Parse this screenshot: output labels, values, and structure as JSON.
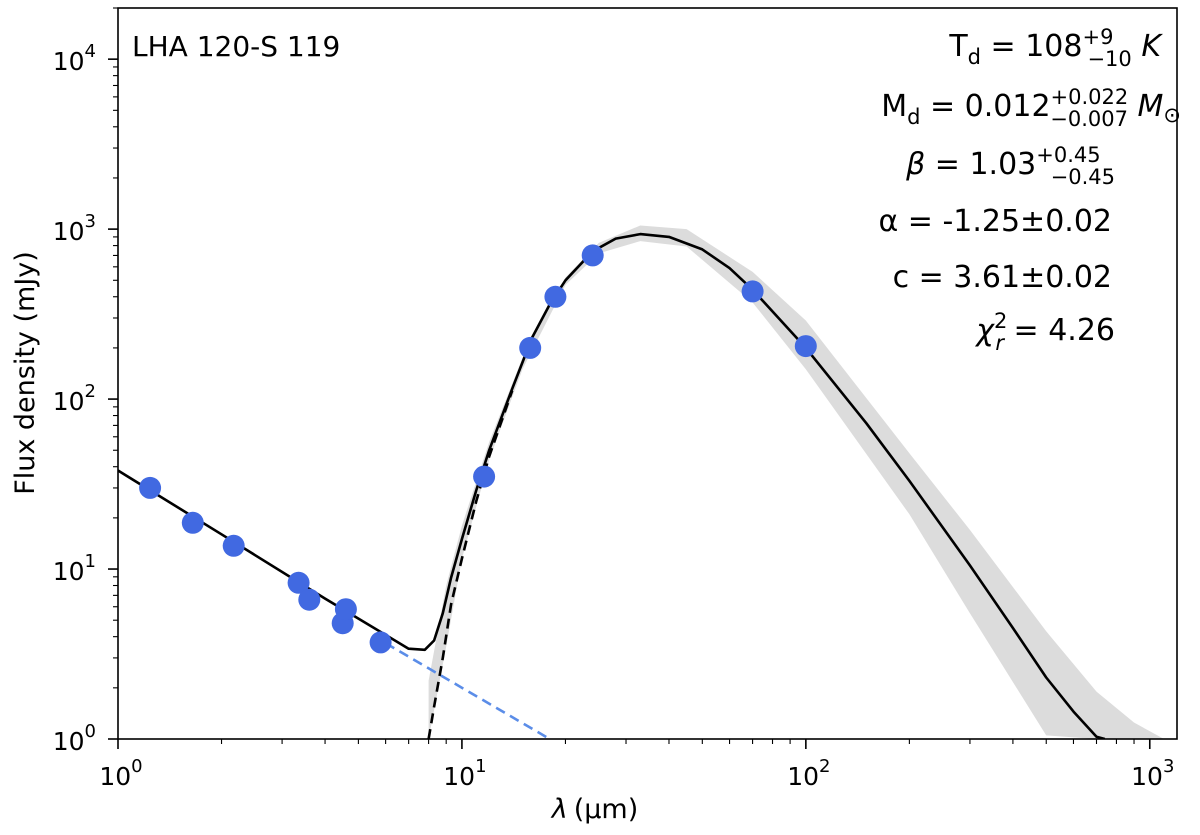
{
  "chart_data": {
    "type": "scatter",
    "title": "",
    "object_name": "LHA 120-S 119",
    "xlabel": {
      "symbol": "λ",
      "unit": "(μm)"
    },
    "ylabel": "Flux density (mJy)",
    "x_scale": "log",
    "y_scale": "log",
    "xlim": [
      1.0,
      1200.0
    ],
    "ylim": [
      1.0,
      20000.0
    ],
    "x_ticks": [
      {
        "value": 1,
        "base": "10",
        "exp": "0"
      },
      {
        "value": 10,
        "base": "10",
        "exp": "1"
      },
      {
        "value": 100,
        "base": "10",
        "exp": "2"
      },
      {
        "value": 1000,
        "base": "10",
        "exp": "3"
      }
    ],
    "y_ticks": [
      {
        "value": 1,
        "base": "10",
        "exp": "0"
      },
      {
        "value": 10,
        "base": "10",
        "exp": "1"
      },
      {
        "value": 100,
        "base": "10",
        "exp": "2"
      },
      {
        "value": 1000,
        "base": "10",
        "exp": "3"
      },
      {
        "value": 10000,
        "base": "10",
        "exp": "4"
      }
    ],
    "grid": false,
    "fit_params": {
      "Td_K": 108,
      "Td_err": [
        "+9",
        "−10"
      ],
      "Md_Msun": 0.012,
      "Md_err": [
        "+0.022",
        "−0.007"
      ],
      "beta": 1.03,
      "beta_err": [
        "+0.45",
        "−0.45"
      ],
      "alpha": -1.25,
      "alpha_err": 0.02,
      "c": 3.61,
      "c_err": 0.02
    },
    "annotations": [
      {
        "id": "td",
        "prefix": "T",
        "sub": "d",
        "mid": " = 108",
        "sup": "+9",
        "low": "−10",
        "suffix": " K"
      },
      {
        "id": "md",
        "prefix": "M",
        "sub": "d",
        "mid": " = 0.012",
        "sup": "+0.022",
        "low": "−0.007",
        "suffix": " M",
        "suffix_sub": "⊙"
      },
      {
        "id": "beta",
        "prefix": "β",
        "mid": " = 1.03",
        "sup": "+0.45",
        "low": "−0.45"
      },
      {
        "id": "alpha",
        "text": "α = -1.25±0.02"
      },
      {
        "id": "c",
        "text": "c = 3.61±0.02"
      },
      {
        "id": "chi2",
        "prefix": "χ",
        "sup": "2",
        "low": "r",
        "mid": " = 4.26"
      }
    ],
    "series": [
      {
        "name": "photometry",
        "kind": "points",
        "color": "#4169E1",
        "x": [
          1.24,
          1.65,
          2.17,
          3.35,
          3.6,
          4.5,
          4.6,
          5.8,
          11.6,
          15.8,
          18.7,
          24.0,
          70.0,
          100.0
        ],
        "y": [
          30.0,
          18.7,
          13.7,
          8.3,
          6.6,
          4.8,
          5.8,
          3.7,
          35.0,
          200.0,
          400.0,
          700.0,
          430.0,
          205.0
        ]
      },
      {
        "name": "total model",
        "kind": "line",
        "color": "#000000",
        "x": [
          1.0,
          2.0,
          4.0,
          6.0,
          7.0,
          7.8,
          8.3,
          8.8,
          9.3,
          10.0,
          11.0,
          12.0,
          14.0,
          16.0,
          18.0,
          20.0,
          24.0,
          28.0,
          33.0,
          40.0,
          50.0,
          60.0,
          70.0,
          100.0,
          150.0,
          200.0,
          300.0,
          400.0,
          500.0,
          600.0,
          700.0,
          740.0
        ],
        "y": [
          38.0,
          16.0,
          6.7,
          4.1,
          3.4,
          3.35,
          3.8,
          5.5,
          8.9,
          15.0,
          29.0,
          50.0,
          115.0,
          230.0,
          360.0,
          500.0,
          740.0,
          880.0,
          935.0,
          900.0,
          760.0,
          590.0,
          440.0,
          200.0,
          72.0,
          33.0,
          10.5,
          4.5,
          2.3,
          1.45,
          1.03,
          1.0
        ]
      },
      {
        "name": "dust component",
        "kind": "dashed",
        "color": "#000000",
        "x": [
          8.0,
          8.3,
          8.8,
          9.3,
          10.0,
          11.0,
          12.0,
          14.0
        ],
        "y": [
          1.0,
          1.55,
          3.0,
          6.2,
          11.5,
          25.0,
          46.0,
          112.0
        ]
      },
      {
        "name": "stellar power law",
        "kind": "dashed",
        "color": "#5B8DE8",
        "x": [
          6.0,
          18.0
        ],
        "y": [
          3.66,
          1.0
        ]
      },
      {
        "name": "model uncertainty",
        "kind": "band",
        "color": "#dcdcdc",
        "x": [
          8.0,
          9.0,
          10.0,
          12.0,
          15.0,
          20.0,
          25.0,
          33.0,
          45.0,
          70.0,
          100.0,
          200.0,
          300.0,
          500.0,
          700.0,
          900.0,
          1100.0
        ],
        "upper": [
          2.2,
          8.0,
          18.0,
          56.0,
          175.0,
          520.0,
          830.0,
          1050.0,
          1000.0,
          560.0,
          290.0,
          48.0,
          17.0,
          4.3,
          1.9,
          1.25,
          1.0
        ],
        "lower": [
          1.0,
          3.5,
          11.5,
          44.0,
          150.0,
          470.0,
          720.0,
          850.0,
          790.0,
          370.0,
          150.0,
          21.0,
          5.5,
          1.05,
          1.0,
          1.0,
          1.0
        ]
      }
    ]
  }
}
